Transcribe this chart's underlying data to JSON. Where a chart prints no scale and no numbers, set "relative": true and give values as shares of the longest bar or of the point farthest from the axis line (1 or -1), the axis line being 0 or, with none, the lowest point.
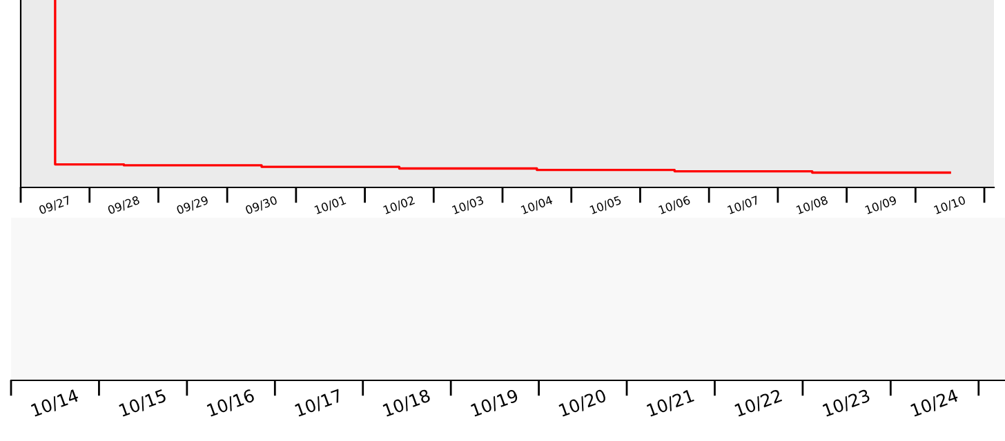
{
  "chart_data": [
    {
      "type": "step",
      "relative": true,
      "categories": [
        "09/27",
        "09/28",
        "09/29",
        "09/30",
        "10/01",
        "10/02",
        "10/03",
        "10/04",
        "10/05",
        "10/06",
        "10/07",
        "10/08",
        "10/09",
        "10/10"
      ],
      "series": [
        {
          "color": "#ff0000",
          "values": [
            1,
            0.123,
            0.118,
            0.118,
            0.11,
            0.11,
            0.101,
            0.101,
            0.093,
            0.093,
            0.086,
            0.086,
            0.079,
            0.079
          ]
        }
      ]
    },
    {
      "type": "other",
      "categories": [
        "10/14",
        "10/15",
        "10/16",
        "10/17",
        "10/18",
        "10/19",
        "10/20",
        "10/21",
        "10/22",
        "10/23",
        "10/24"
      ]
    }
  ]
}
